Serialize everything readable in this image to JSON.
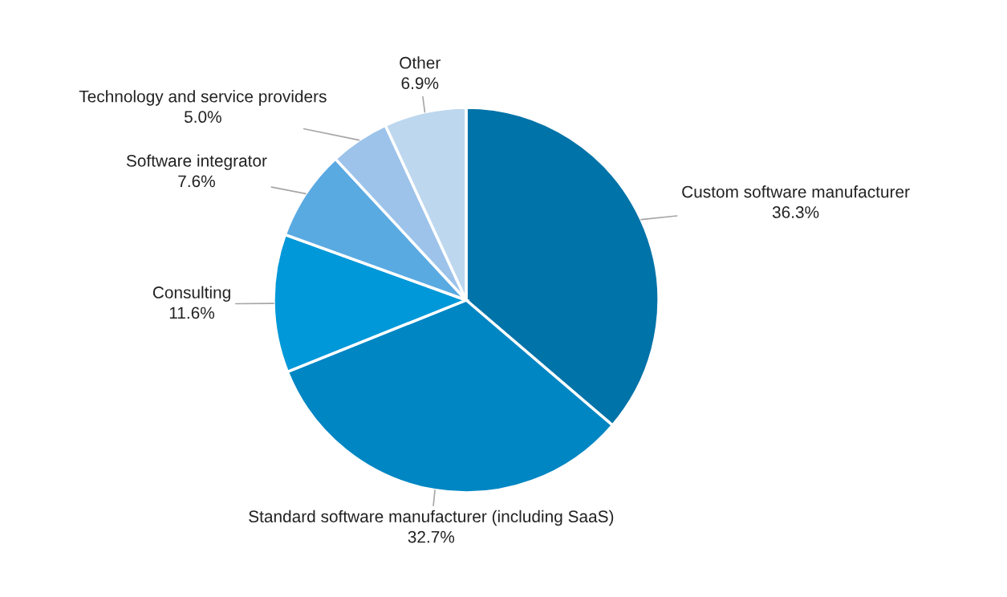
{
  "chart_data": {
    "type": "pie",
    "categories": [
      "Custom software manufacturer",
      "Standard software manufacturer (including SaaS)",
      "Consulting",
      "Software integrator",
      "Technology and service providers",
      "Other"
    ],
    "values": [
      36.3,
      32.7,
      11.6,
      7.6,
      5.0,
      6.9
    ],
    "value_labels": [
      "36.3%",
      "32.7%",
      "11.6%",
      "7.6%",
      "5.0%",
      "6.9%"
    ],
    "colors": [
      "#0073a8",
      "#0086c3",
      "#0098d8",
      "#5aaae2",
      "#9dc3ea",
      "#bdd7ee"
    ],
    "legend": false
  }
}
